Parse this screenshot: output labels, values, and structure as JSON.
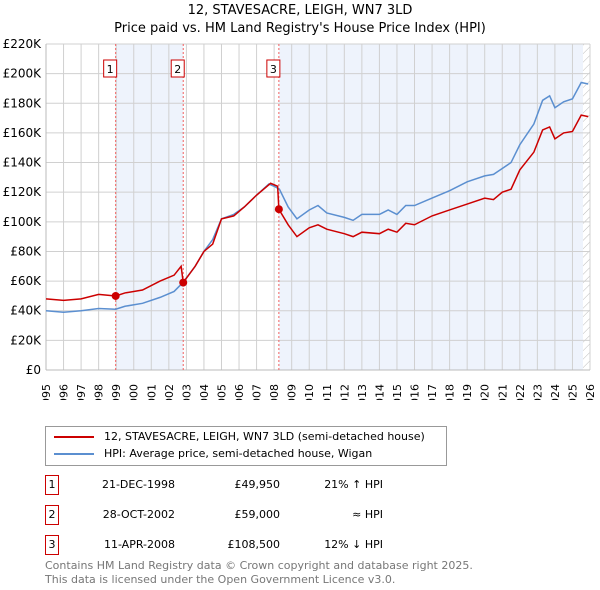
{
  "title": "12, STAVESACRE, LEIGH, WN7 3LD",
  "subtitle": "Price paid vs. HM Land Registry's House Price Index (HPI)",
  "chart_data": {
    "type": "line",
    "title": "12, STAVESACRE, LEIGH, WN7 3LD",
    "subtitle": "Price paid vs. HM Land Registry's House Price Index (HPI)",
    "xlabel": "",
    "ylabel": "",
    "xlim": [
      1995,
      2026
    ],
    "ylim": [
      0,
      220000
    ],
    "x_ticks": [
      "1995",
      "1996",
      "1997",
      "1998",
      "1999",
      "2000",
      "2001",
      "2002",
      "2003",
      "2004",
      "2005",
      "2006",
      "2007",
      "2008",
      "2009",
      "2010",
      "2011",
      "2012",
      "2013",
      "2014",
      "2015",
      "2016",
      "2017",
      "2018",
      "2019",
      "2020",
      "2021",
      "2022",
      "2023",
      "2024",
      "2025",
      "2026"
    ],
    "y_ticks": [
      {
        "v": 0,
        "label": "£0"
      },
      {
        "v": 20000,
        "label": "£20K"
      },
      {
        "v": 40000,
        "label": "£40K"
      },
      {
        "v": 60000,
        "label": "£60K"
      },
      {
        "v": 80000,
        "label": "£80K"
      },
      {
        "v": 100000,
        "label": "£100K"
      },
      {
        "v": 120000,
        "label": "£120K"
      },
      {
        "v": 140000,
        "label": "£140K"
      },
      {
        "v": 160000,
        "label": "£160K"
      },
      {
        "v": 180000,
        "label": "£180K"
      },
      {
        "v": 200000,
        "label": "£200K"
      },
      {
        "v": 220000,
        "label": "£220K"
      }
    ],
    "grid": true,
    "series": [
      {
        "name": "12, STAVESACRE, LEIGH, WN7 3LD (semi-detached house)",
        "color": "#cc0000",
        "x": [
          1995,
          1996,
          1997,
          1998,
          1998.97,
          1999.5,
          2000.5,
          2001.5,
          2002.3,
          2002.7,
          2002.82,
          2003.5,
          2004,
          2004.5,
          2005,
          2005.7,
          2006.3,
          2007,
          2007.8,
          2008.2,
          2008.27,
          2008.8,
          2009.3,
          2010,
          2010.5,
          2011,
          2012,
          2012.5,
          2013,
          2014,
          2014.5,
          2015,
          2015.5,
          2016,
          2017,
          2018,
          2019,
          2020,
          2020.5,
          2021,
          2021.5,
          2022,
          2022.8,
          2023.3,
          2023.7,
          2024,
          2024.5,
          2025,
          2025.5,
          2025.9
        ],
        "y": [
          48000,
          47000,
          48000,
          51000,
          49950,
          52000,
          54000,
          60000,
          64000,
          70000,
          59000,
          70000,
          80000,
          85000,
          102000,
          104000,
          110000,
          118000,
          126000,
          124000,
          108500,
          98000,
          90000,
          96000,
          98000,
          95000,
          92000,
          90000,
          93000,
          92000,
          95000,
          93000,
          99000,
          98000,
          104000,
          108000,
          112000,
          116000,
          115000,
          120000,
          122000,
          135000,
          147000,
          162000,
          164000,
          156000,
          160000,
          161000,
          172000,
          171000
        ]
      },
      {
        "name": "HPI: Average price, semi-detached house, Wigan",
        "color": "#5b8fd0",
        "x": [
          1995,
          1996,
          1997,
          1998,
          1998.97,
          1999.5,
          2000.5,
          2001.5,
          2002.3,
          2002.8,
          2003.5,
          2004,
          2004.5,
          2005,
          2005.7,
          2006.3,
          2007,
          2007.7,
          2008,
          2008.3,
          2008.8,
          2009.3,
          2010,
          2010.5,
          2011,
          2012,
          2012.5,
          2013,
          2014,
          2014.5,
          2015,
          2015.5,
          2016,
          2017,
          2018,
          2019,
          2020,
          2020.5,
          2021,
          2021.5,
          2022,
          2022.8,
          2023.3,
          2023.7,
          2024,
          2024.5,
          2025,
          2025.5,
          2025.9
        ],
        "y": [
          40000,
          39000,
          40000,
          41500,
          41000,
          43000,
          45000,
          49000,
          53000,
          59000,
          70000,
          80000,
          88000,
          102000,
          105000,
          110000,
          118000,
          125500,
          124000,
          122000,
          110000,
          102000,
          108000,
          111000,
          106000,
          103000,
          101000,
          105000,
          105000,
          108000,
          105000,
          111000,
          111000,
          116000,
          121000,
          127000,
          131000,
          132000,
          136000,
          140000,
          152000,
          166000,
          182000,
          185000,
          177000,
          181000,
          183000,
          194000,
          193000
        ]
      }
    ],
    "sales": [
      {
        "label": "1",
        "x": 1998.97,
        "y": 49950
      },
      {
        "label": "2",
        "x": 2002.82,
        "y": 59000
      },
      {
        "label": "3",
        "x": 2008.27,
        "y": 108500
      }
    ],
    "shaded_ranges": [
      [
        1998.97,
        2002.82
      ],
      [
        2008.27,
        2025.6
      ]
    ],
    "hatched_from": 2025.6,
    "legend": "below"
  },
  "legend": {
    "items": [
      {
        "label": "12, STAVESACRE, LEIGH, WN7 3LD (semi-detached house)",
        "color": "#cc0000"
      },
      {
        "label": "HPI: Average price, semi-detached house, Wigan",
        "color": "#5b8fd0"
      }
    ]
  },
  "transactions": [
    {
      "num": "1",
      "date": "21-DEC-1998",
      "price": "£49,950",
      "hpi": "21% ↑ HPI"
    },
    {
      "num": "2",
      "date": "28-OCT-2002",
      "price": "£59,000",
      "hpi": "≈ HPI"
    },
    {
      "num": "3",
      "date": "11-APR-2008",
      "price": "£108,500",
      "hpi": "12% ↓ HPI"
    }
  ],
  "footer": {
    "line1": "Contains HM Land Registry data © Crown copyright and database right 2025.",
    "line2": "This data is licensed under the Open Government Licence v3.0."
  }
}
